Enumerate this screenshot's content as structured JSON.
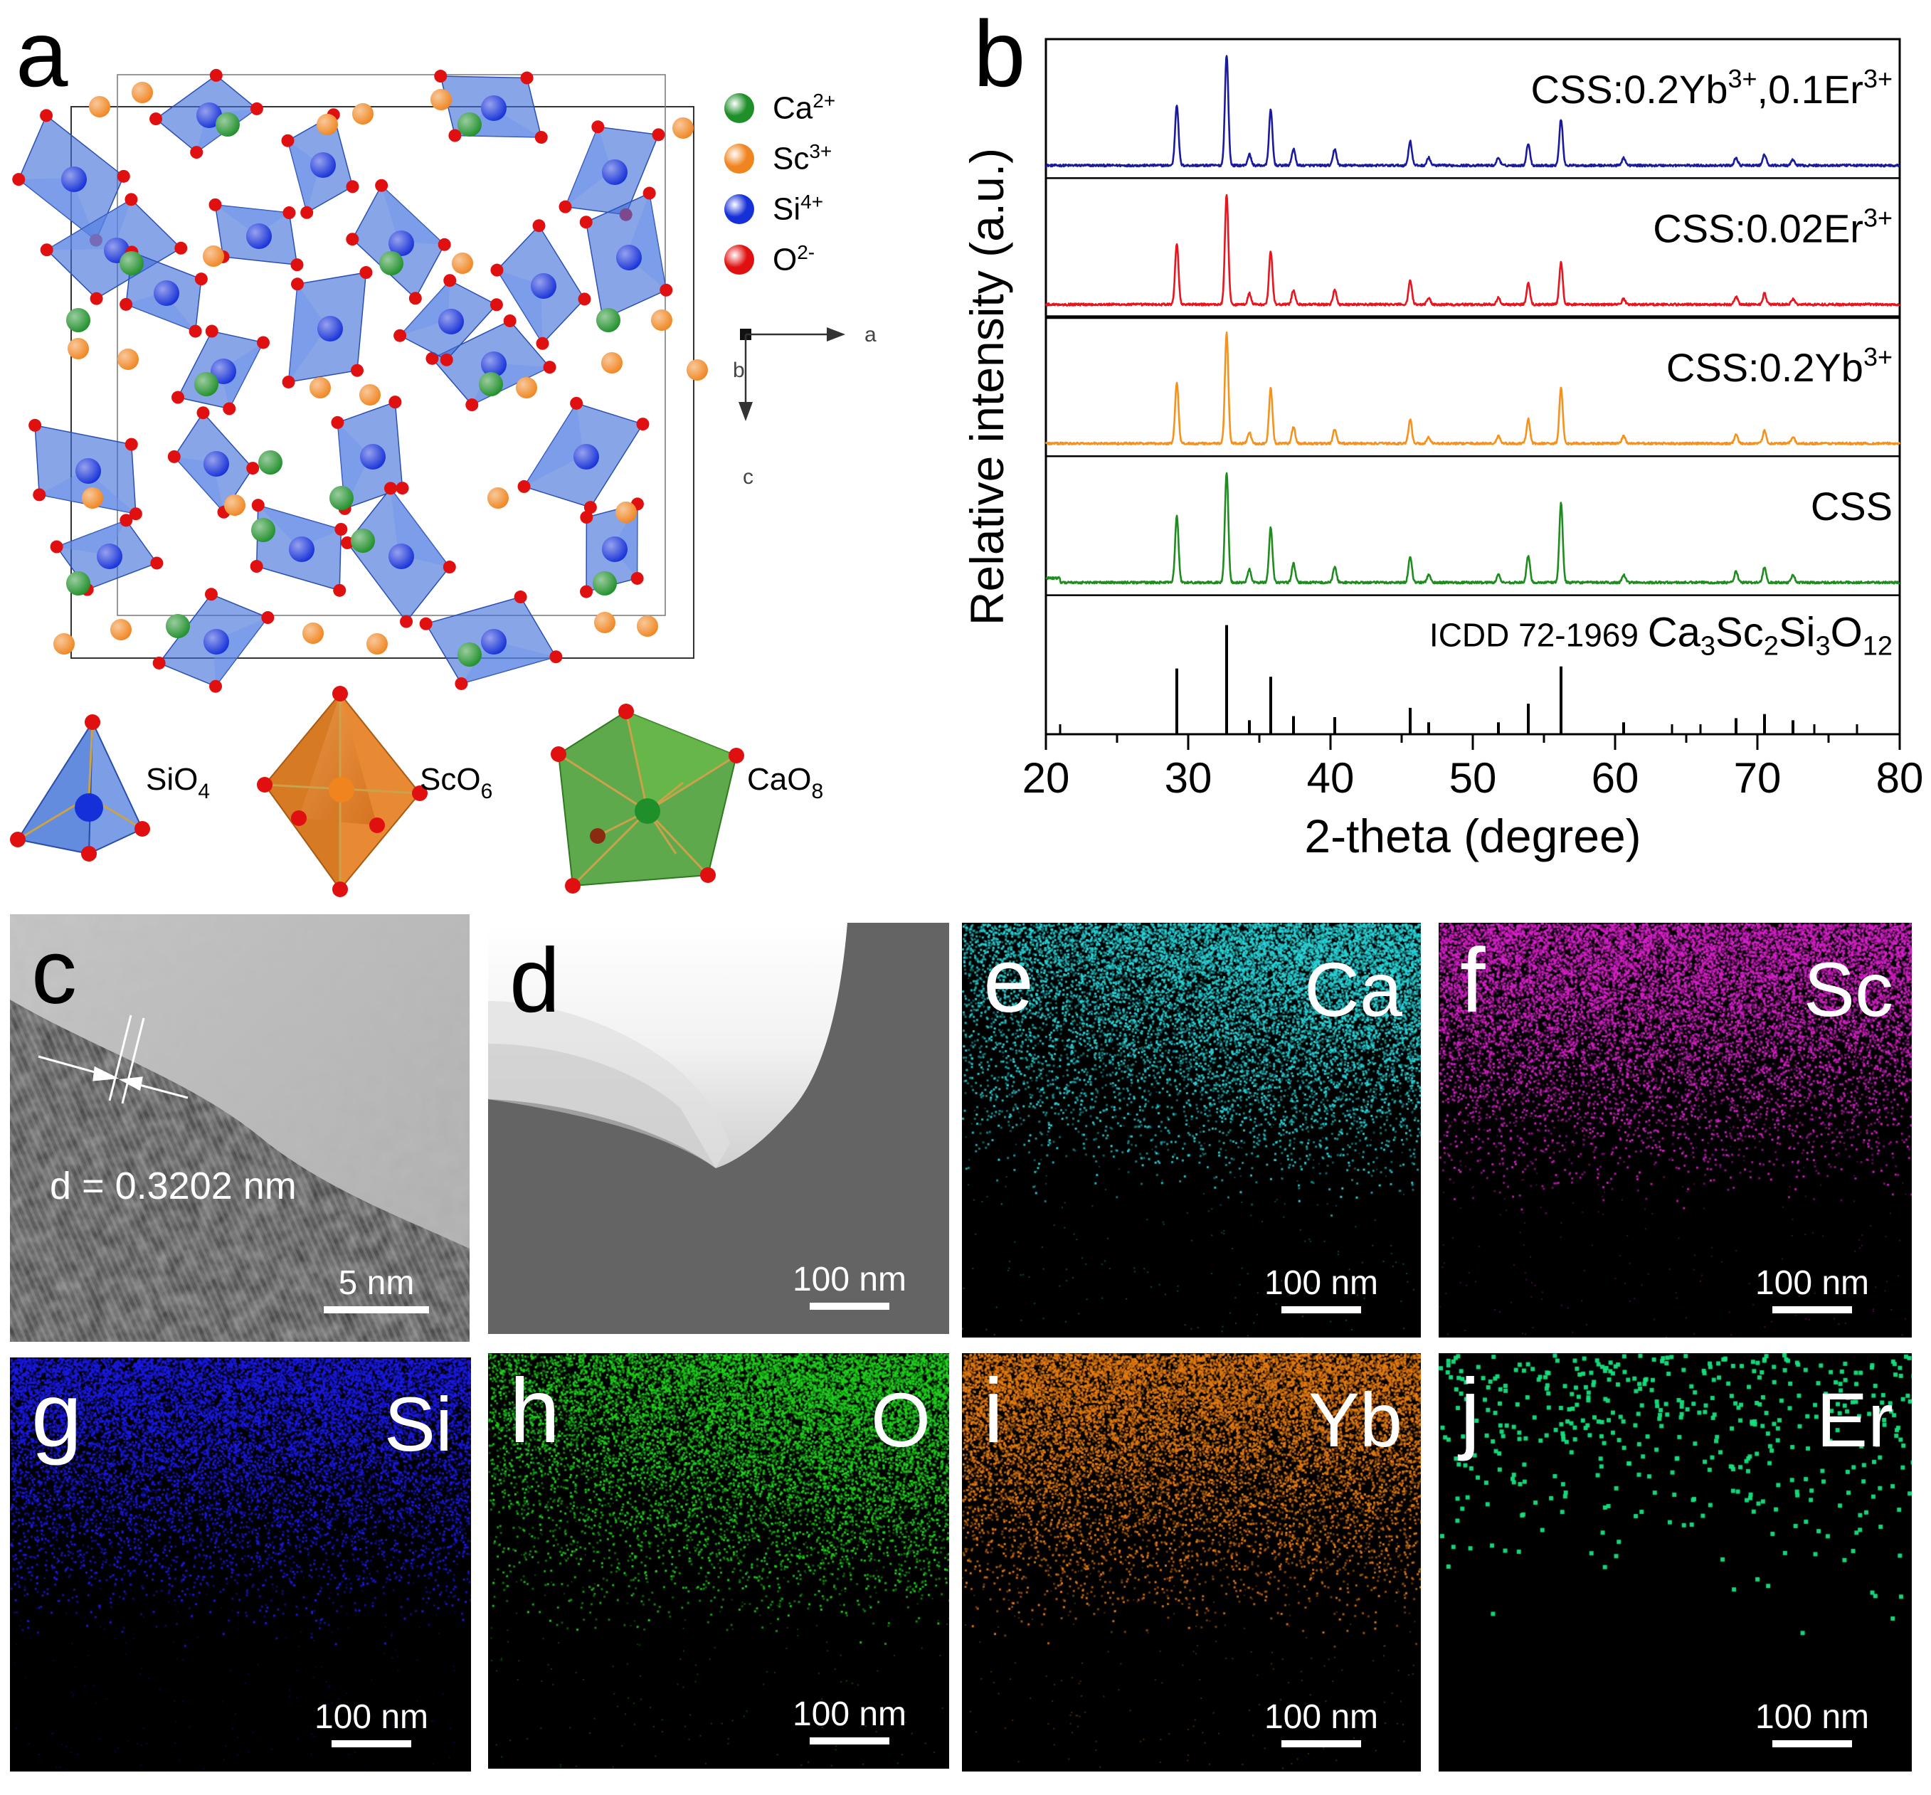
{
  "panel_a": {
    "label": "a",
    "legend": [
      {
        "base": "Ca",
        "sup": "2+",
        "color": "#1f8f2a"
      },
      {
        "base": "Sc",
        "sup": "3+",
        "color": "#f08520"
      },
      {
        "base": "Si",
        "sup": "4+",
        "color": "#1530d8"
      },
      {
        "base": "O",
        "sup": "2-",
        "color": "#e01010"
      }
    ],
    "axes": {
      "a": "a",
      "b": "b",
      "c": "c"
    },
    "polyhedra": [
      {
        "base": "SiO",
        "sub": "4"
      },
      {
        "base": "ScO",
        "sub": "6"
      },
      {
        "base": "CaO",
        "sub": "8"
      }
    ]
  },
  "panel_b": {
    "label": "b",
    "chart_data": {
      "type": "line",
      "title": "",
      "xlabel": "2-theta (degree)",
      "ylabel": "Relative intensity (a.u.)",
      "xlim": [
        20,
        80
      ],
      "xticks": [
        20,
        30,
        40,
        50,
        60,
        70,
        80
      ],
      "peak_positions": [
        29.2,
        32.7,
        34.3,
        35.8,
        37.4,
        40.3,
        45.6,
        46.9,
        51.8,
        53.9,
        56.2,
        60.6,
        68.5,
        70.5,
        72.5
      ],
      "series": [
        {
          "name": "CSS:0.2Yb3+,0.1Er3+",
          "color": "#1a1a9e",
          "relative_intensities": [
            0.55,
            1.0,
            0.1,
            0.5,
            0.15,
            0.15,
            0.22,
            0.07,
            0.07,
            0.2,
            0.42,
            0.07,
            0.07,
            0.1,
            0.05
          ]
        },
        {
          "name": "CSS:0.02Er3+",
          "color": "#e8141e",
          "relative_intensities": [
            0.55,
            1.0,
            0.1,
            0.48,
            0.13,
            0.13,
            0.22,
            0.06,
            0.06,
            0.2,
            0.38,
            0.05,
            0.07,
            0.1,
            0.05
          ]
        },
        {
          "name": "CSS:0.2Yb3+",
          "color": "#f5921e",
          "relative_intensities": [
            0.55,
            1.0,
            0.1,
            0.5,
            0.15,
            0.13,
            0.22,
            0.06,
            0.07,
            0.22,
            0.5,
            0.07,
            0.08,
            0.12,
            0.06
          ]
        },
        {
          "name": "CSS",
          "color": "#1e8c1e",
          "relative_intensities": [
            0.6,
            1.0,
            0.12,
            0.5,
            0.17,
            0.14,
            0.24,
            0.07,
            0.07,
            0.24,
            0.72,
            0.07,
            0.1,
            0.14,
            0.07
          ]
        },
        {
          "name": "ICDD 72-1969 Ca3Sc2Si3O12",
          "color": "#000000",
          "relative_intensities": [
            0.58,
            1.0,
            0.08,
            0.5,
            0.12,
            0.11,
            0.2,
            0.06,
            0.06,
            0.24,
            0.6,
            0.06,
            0.1,
            0.14,
            0.08
          ]
        }
      ],
      "series_labels": [
        {
          "parts": [
            [
              "t",
              "CSS:0.2Yb"
            ],
            [
              "sup",
              "3+"
            ],
            [
              "t",
              ",0.1Er"
            ],
            [
              "sup",
              "3+"
            ]
          ]
        },
        {
          "parts": [
            [
              "t",
              "CSS:0.02Er"
            ],
            [
              "sup",
              "3+"
            ]
          ]
        },
        {
          "parts": [
            [
              "t",
              "CSS:0.2Yb"
            ],
            [
              "sup",
              "3+"
            ]
          ]
        },
        {
          "parts": [
            [
              "t",
              "CSS"
            ]
          ]
        },
        {
          "parts": [
            [
              "t",
              "ICDD 72-1969 "
            ],
            [
              "big",
              "Ca"
            ],
            [
              "sub",
              "3"
            ],
            [
              "big",
              "Sc"
            ],
            [
              "sub",
              "2"
            ],
            [
              "big",
              "Si"
            ],
            [
              "sub",
              "3"
            ],
            [
              "big",
              "O"
            ],
            [
              "sub",
              "12"
            ]
          ]
        }
      ]
    }
  },
  "panel_c": {
    "label": "c",
    "d_spacing": "d = 0.3202 nm",
    "scale": "5 nm"
  },
  "maps": [
    {
      "id": "d",
      "label": "d",
      "element": "",
      "scale": "100 nm",
      "color": "#ffffff"
    },
    {
      "id": "e",
      "label": "e",
      "element": "Ca",
      "scale": "100 nm",
      "color": "#2ad4d8"
    },
    {
      "id": "f",
      "label": "f",
      "element": "Sc",
      "scale": "100 nm",
      "color": "#d621c8"
    },
    {
      "id": "g",
      "label": "g",
      "element": "Si",
      "scale": "100 nm",
      "color": "#1a1ae6"
    },
    {
      "id": "h",
      "label": "h",
      "element": "O",
      "scale": "100 nm",
      "color": "#20d21e"
    },
    {
      "id": "i",
      "label": "i",
      "element": "Yb",
      "scale": "100 nm",
      "color": "#e67c12"
    },
    {
      "id": "j",
      "label": "j",
      "element": "Er",
      "scale": "100 nm",
      "color": "#17e07e"
    }
  ]
}
